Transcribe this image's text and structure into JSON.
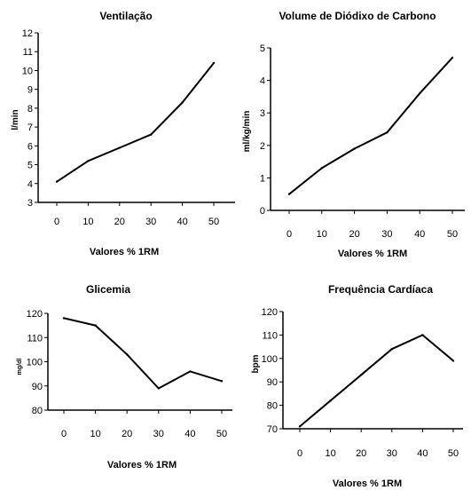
{
  "chart_data": [
    {
      "type": "line",
      "title": "Ventilação",
      "xlabel": "Valores % 1RM",
      "ylabel": "l/min",
      "x": [
        0,
        10,
        20,
        30,
        40,
        50
      ],
      "xticks": [
        "0",
        "10",
        "20",
        "30",
        "40",
        "50"
      ],
      "ylim": [
        3,
        12
      ],
      "yticks": [
        "3",
        "4",
        "5",
        "6",
        "7",
        "8",
        "9",
        "10",
        "11",
        "12"
      ],
      "series": [
        {
          "values": [
            4.1,
            5.2,
            5.9,
            6.6,
            8.3,
            10.4
          ]
        }
      ]
    },
    {
      "type": "line",
      "title": "Volume de Diódixo de Carbono",
      "xlabel": "Valores % 1RM",
      "ylabel": "ml/kg/min",
      "x": [
        0,
        10,
        20,
        30,
        40,
        50
      ],
      "xticks": [
        "0",
        "10",
        "20",
        "30",
        "40",
        "50"
      ],
      "ylim": [
        0,
        5
      ],
      "yticks": [
        "0",
        "1",
        "2",
        "3",
        "4",
        "5"
      ],
      "series": [
        {
          "values": [
            0.5,
            1.3,
            1.9,
            2.4,
            3.6,
            4.7
          ]
        }
      ]
    },
    {
      "type": "line",
      "title": "Glicemia",
      "xlabel": "Valores % 1RM",
      "ylabel": "mg/dl",
      "x": [
        0,
        10,
        20,
        30,
        40,
        50
      ],
      "xticks": [
        "0",
        "10",
        "20",
        "30",
        "40",
        "50"
      ],
      "ylim": [
        80,
        120
      ],
      "yticks": [
        "80",
        "90",
        "100",
        "110",
        "120"
      ],
      "series": [
        {
          "values": [
            118,
            115,
            103,
            89,
            96,
            92
          ]
        }
      ]
    },
    {
      "type": "line",
      "title": "Frequência Cardíaca",
      "xlabel": "Valores % 1RM",
      "ylabel": "bpm",
      "x": [
        0,
        10,
        20,
        30,
        40,
        50
      ],
      "xticks": [
        "0",
        "10",
        "20",
        "30",
        "40",
        "50"
      ],
      "ylim": [
        70,
        120
      ],
      "yticks": [
        "70",
        "80",
        "90",
        "100",
        "110",
        "120"
      ],
      "series": [
        {
          "values": [
            71,
            82,
            93,
            104,
            110,
            99
          ]
        }
      ]
    }
  ]
}
